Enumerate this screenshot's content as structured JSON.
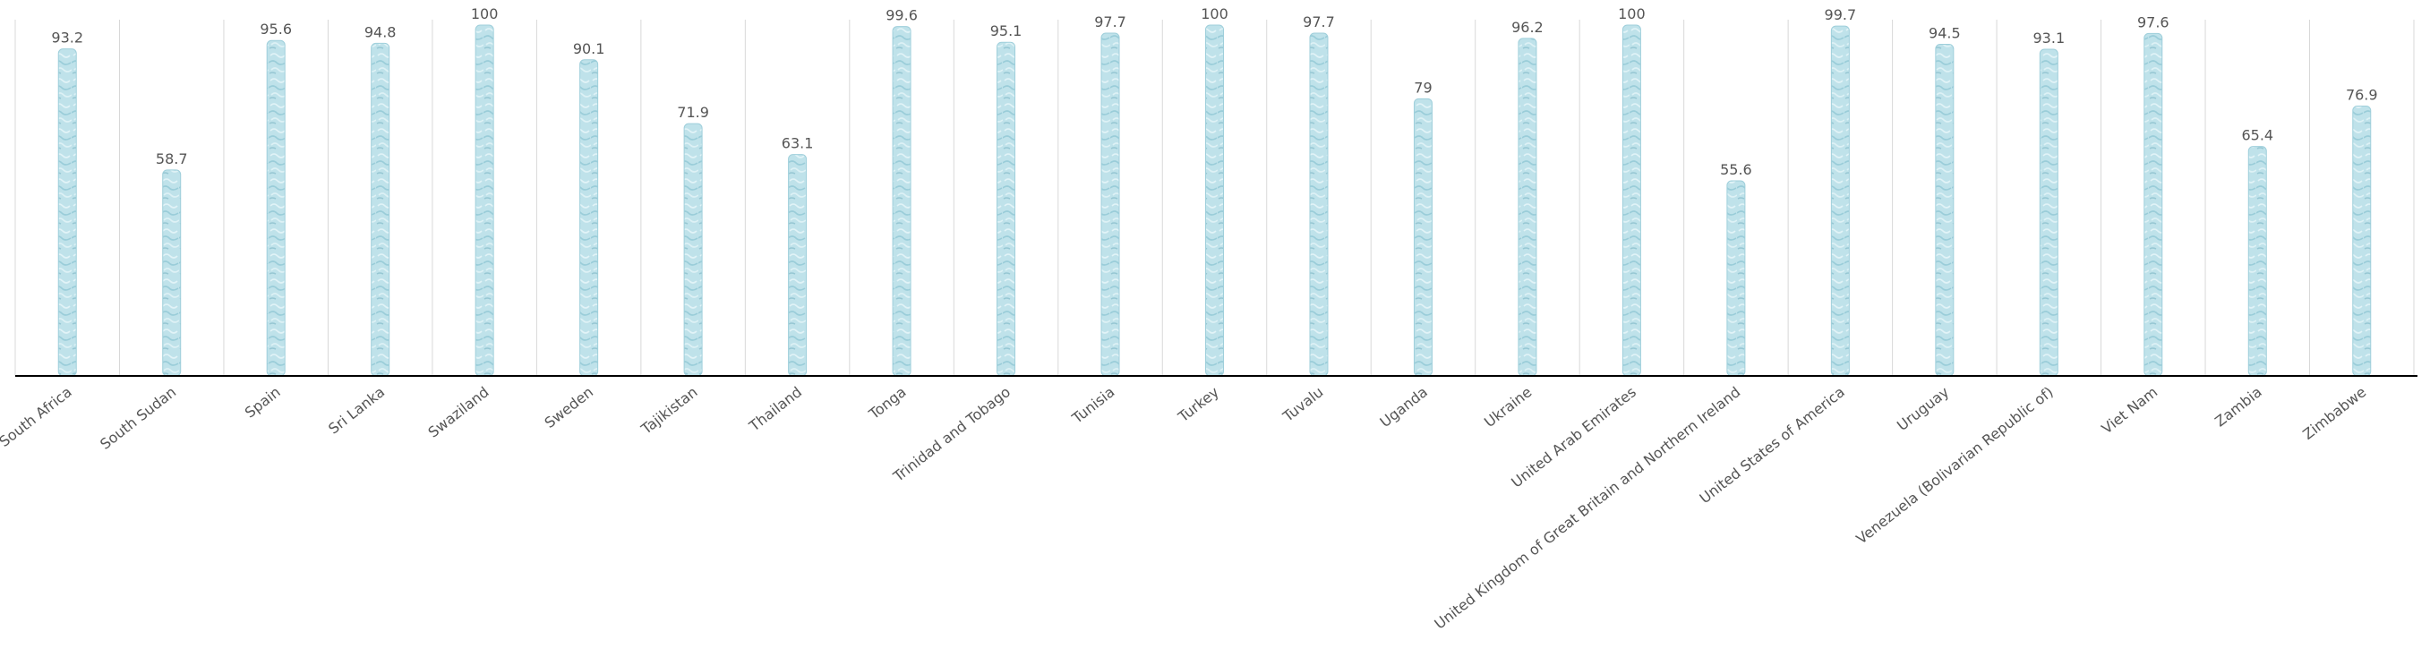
{
  "chart_data": {
    "type": "bar",
    "title": "",
    "xlabel": "",
    "ylabel": "",
    "ylim": [
      0,
      100
    ],
    "grid": {
      "vertical_category_separators": true,
      "horizontal": false
    },
    "legend": "none",
    "bar_fill": "#bfe2ea",
    "bar_stroke": "#9fcfdb",
    "categories": [
      "South Africa",
      "South Sudan",
      "Spain",
      "Sri Lanka",
      "Swaziland",
      "Sweden",
      "Tajikistan",
      "Thailand",
      "Tonga",
      "Trinidad and Tobago",
      "Tunisia",
      "Turkey",
      "Tuvalu",
      "Uganda",
      "Ukraine",
      "United Arab Emirates",
      "United Kingdom of Great Britain and Northern Ireland",
      "United States of America",
      "Uruguay",
      "Venezuela (Bolivarian Republic of)",
      "Viet Nam",
      "Zambia",
      "Zimbabwe"
    ],
    "values": [
      93.2,
      58.7,
      95.6,
      94.8,
      100,
      90.1,
      71.9,
      63.1,
      99.6,
      95.1,
      97.7,
      100,
      97.7,
      79,
      96.2,
      100,
      55.6,
      99.7,
      94.5,
      93.1,
      97.6,
      65.4,
      76.9
    ],
    "data_labels": [
      "93.2",
      "58.7",
      "95.6",
      "94.8",
      "100",
      "90.1",
      "71.9",
      "63.1",
      "99.6",
      "95.1",
      "97.7",
      "100",
      "97.7",
      "79",
      "96.2",
      "100",
      "55.6",
      "99.7",
      "94.5",
      "93.1",
      "97.6",
      "65.4",
      "76.9"
    ]
  }
}
